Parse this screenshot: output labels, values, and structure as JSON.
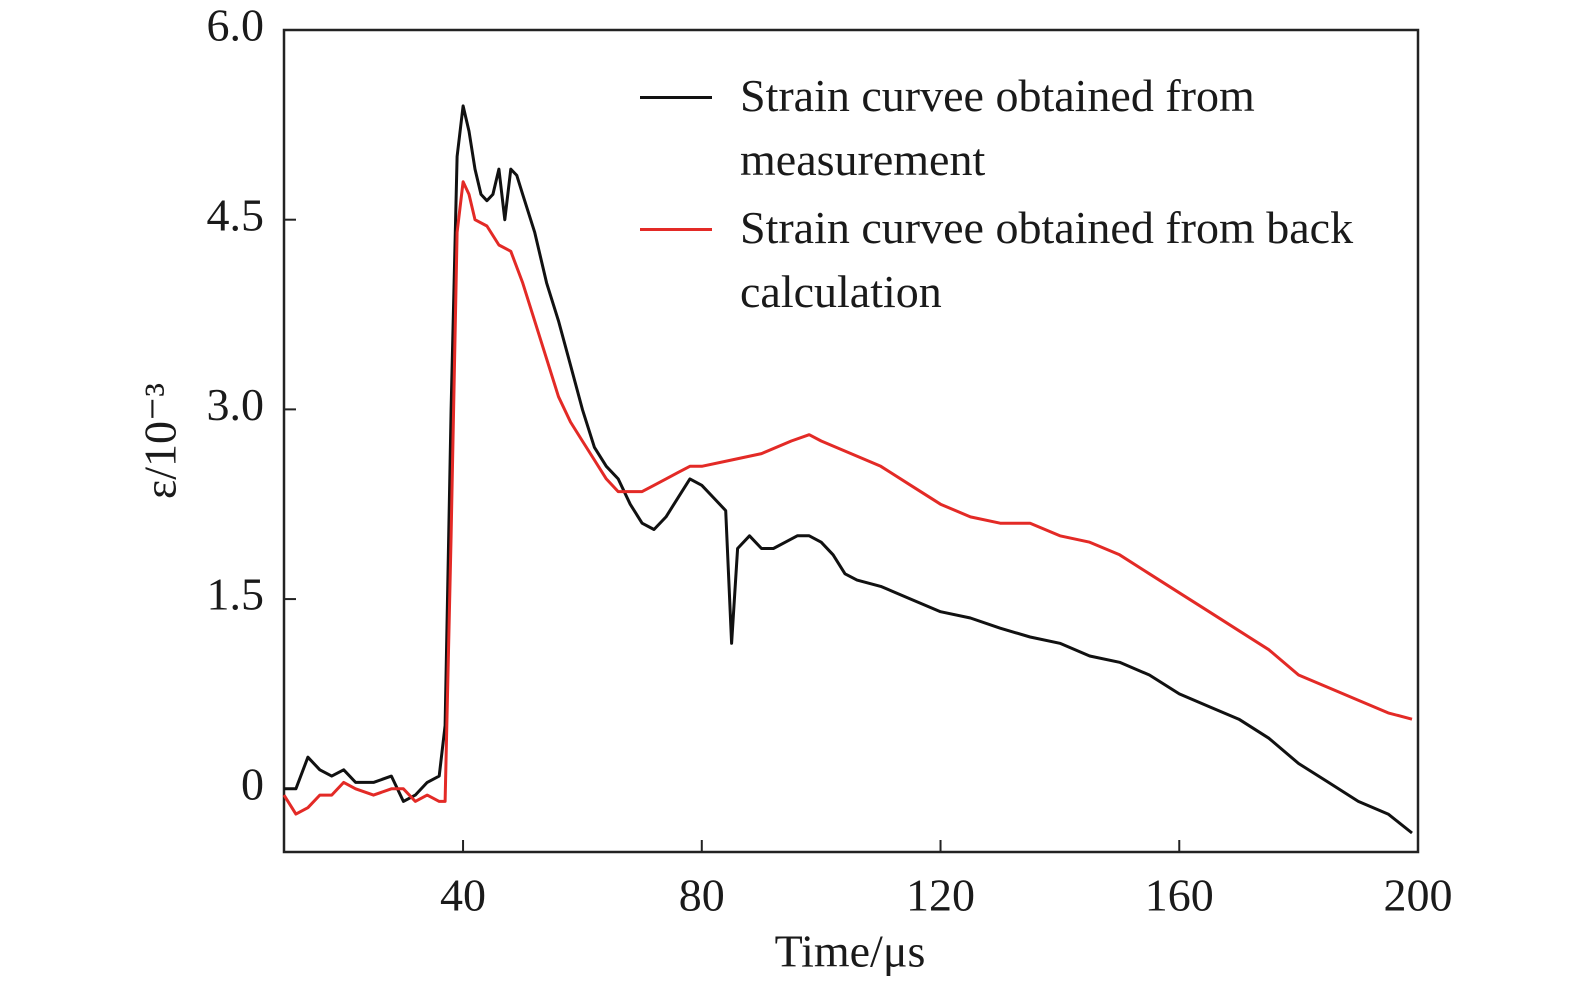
{
  "chart_data": {
    "type": "line",
    "x_label": "Time/μs",
    "y_label": "ε/10⁻³",
    "xlim": [
      10,
      200
    ],
    "ylim": [
      -0.5,
      6.0
    ],
    "xticks": [
      40,
      80,
      120,
      160,
      200
    ],
    "yticks": [
      {
        "value": 0,
        "label": "0"
      },
      {
        "value": 1.5,
        "label": "1.5"
      },
      {
        "value": 3.0,
        "label": "3.0"
      },
      {
        "value": 4.5,
        "label": "4.5"
      },
      {
        "value": 6.0,
        "label": "6.0"
      }
    ],
    "legend": "upper right",
    "series": [
      {
        "name": "Strain curvee obtained from measurement",
        "color": "#111111",
        "x": [
          10,
          12,
          14,
          16,
          18,
          20,
          22,
          25,
          28,
          30,
          32,
          34,
          36,
          37,
          38,
          39,
          40,
          41,
          42,
          43,
          44,
          45,
          46,
          47,
          48,
          49,
          50,
          52,
          54,
          56,
          58,
          60,
          62,
          64,
          66,
          68,
          70,
          72,
          74,
          76,
          78,
          80,
          82,
          84,
          85,
          86,
          88,
          90,
          92,
          94,
          96,
          98,
          100,
          102,
          104,
          106,
          110,
          115,
          120,
          125,
          130,
          135,
          140,
          145,
          150,
          155,
          160,
          165,
          170,
          175,
          180,
          185,
          190,
          195,
          199
        ],
        "values": [
          0,
          0,
          0.25,
          0.15,
          0.1,
          0.15,
          0.05,
          0.05,
          0.1,
          -0.1,
          -0.05,
          0.05,
          0.1,
          0.5,
          3.0,
          5.0,
          5.4,
          5.2,
          4.9,
          4.7,
          4.65,
          4.7,
          4.9,
          4.5,
          4.9,
          4.85,
          4.7,
          4.4,
          4.0,
          3.7,
          3.35,
          3.0,
          2.7,
          2.55,
          2.45,
          2.25,
          2.1,
          2.05,
          2.15,
          2.3,
          2.45,
          2.4,
          2.3,
          2.2,
          1.15,
          1.9,
          2.0,
          1.9,
          1.9,
          1.95,
          2.0,
          2.0,
          1.95,
          1.85,
          1.7,
          1.65,
          1.6,
          1.5,
          1.4,
          1.35,
          1.27,
          1.2,
          1.15,
          1.05,
          1.0,
          0.9,
          0.75,
          0.65,
          0.55,
          0.4,
          0.2,
          0.05,
          -0.1,
          -0.2,
          -0.35
        ]
      },
      {
        "name": "Strain curvee obtained from back calculation",
        "color": "#e32a26",
        "x": [
          10,
          12,
          14,
          16,
          18,
          20,
          22,
          25,
          28,
          30,
          32,
          34,
          36,
          37,
          38,
          39,
          40,
          41,
          42,
          44,
          46,
          48,
          50,
          52,
          54,
          56,
          58,
          60,
          62,
          64,
          66,
          68,
          70,
          72,
          74,
          76,
          78,
          80,
          85,
          90,
          95,
          98,
          100,
          105,
          110,
          115,
          120,
          125,
          130,
          135,
          140,
          145,
          150,
          155,
          160,
          165,
          170,
          175,
          180,
          185,
          190,
          195,
          199
        ],
        "values": [
          -0.05,
          -0.2,
          -0.15,
          -0.05,
          -0.05,
          0.05,
          0.0,
          -0.05,
          0.0,
          0.0,
          -0.1,
          -0.05,
          -0.1,
          -0.1,
          2.0,
          4.4,
          4.8,
          4.7,
          4.5,
          4.45,
          4.3,
          4.25,
          4.0,
          3.7,
          3.4,
          3.1,
          2.9,
          2.75,
          2.6,
          2.45,
          2.35,
          2.35,
          2.35,
          2.4,
          2.45,
          2.5,
          2.55,
          2.55,
          2.6,
          2.65,
          2.75,
          2.8,
          2.75,
          2.65,
          2.55,
          2.4,
          2.25,
          2.15,
          2.1,
          2.1,
          2.0,
          1.95,
          1.85,
          1.7,
          1.55,
          1.4,
          1.25,
          1.1,
          0.9,
          0.8,
          0.7,
          0.6,
          0.55
        ]
      }
    ]
  }
}
